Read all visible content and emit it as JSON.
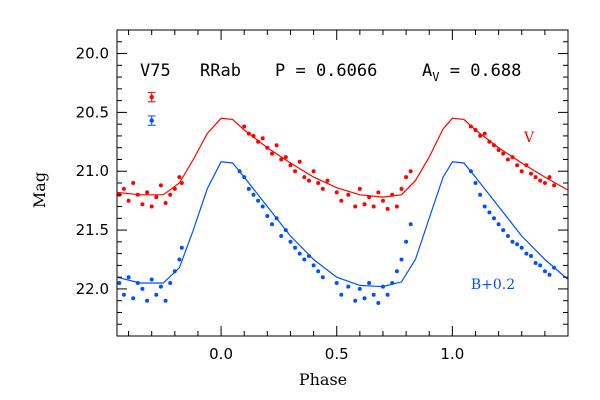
{
  "chart_data": {
    "type": "scatter",
    "xlabel": "Phase",
    "ylabel": "Mag",
    "xlim": [
      -0.45,
      1.5
    ],
    "ylim": [
      22.4,
      19.8
    ],
    "y_inverted": true,
    "x_ticks": [
      "0.0",
      "0.5",
      "1.0"
    ],
    "x_tick_values": [
      0.0,
      0.5,
      1.0
    ],
    "y_ticks": [
      "20.0",
      "20.5",
      "21.0",
      "21.5",
      "22.0"
    ],
    "y_tick_values": [
      20.0,
      20.5,
      21.0,
      21.5,
      22.0
    ],
    "annotation": {
      "star": "V75",
      "type": "RRab",
      "period": "P = 0.6066",
      "amp_symbol": "A",
      "amp_sub": "V",
      "amp_value": " = 0.688"
    },
    "series": [
      {
        "name": "V",
        "color": "#ff0000",
        "fit": [
          [
            -0.45,
            21.18
          ],
          [
            -0.35,
            21.2
          ],
          [
            -0.25,
            21.2
          ],
          [
            -0.18,
            21.1
          ],
          [
            -0.12,
            20.9
          ],
          [
            -0.06,
            20.68
          ],
          [
            0.0,
            20.55
          ],
          [
            0.05,
            20.56
          ],
          [
            0.1,
            20.65
          ],
          [
            0.2,
            20.8
          ],
          [
            0.3,
            20.93
          ],
          [
            0.4,
            21.05
          ],
          [
            0.5,
            21.14
          ],
          [
            0.6,
            21.2
          ],
          [
            0.7,
            21.22
          ],
          [
            0.78,
            21.2
          ],
          [
            0.84,
            21.08
          ],
          [
            0.9,
            20.88
          ],
          [
            0.96,
            20.64
          ],
          [
            1.0,
            20.55
          ],
          [
            1.05,
            20.56
          ],
          [
            1.1,
            20.65
          ],
          [
            1.2,
            20.8
          ],
          [
            1.3,
            20.93
          ],
          [
            1.4,
            21.05
          ],
          [
            1.5,
            21.16
          ]
        ],
        "points": [
          [
            -0.44,
            21.2
          ],
          [
            -0.42,
            21.15
          ],
          [
            -0.4,
            21.25
          ],
          [
            -0.38,
            21.1
          ],
          [
            -0.36,
            21.2
          ],
          [
            -0.34,
            21.28
          ],
          [
            -0.32,
            21.18
          ],
          [
            -0.3,
            21.3
          ],
          [
            -0.28,
            21.22
          ],
          [
            -0.26,
            21.12
          ],
          [
            -0.24,
            21.27
          ],
          [
            -0.22,
            21.2
          ],
          [
            -0.2,
            21.15
          ],
          [
            -0.18,
            21.05
          ],
          [
            -0.17,
            21.1
          ],
          [
            0.1,
            20.62
          ],
          [
            0.12,
            20.68
          ],
          [
            0.14,
            20.7
          ],
          [
            0.16,
            20.75
          ],
          [
            0.18,
            20.72
          ],
          [
            0.2,
            20.8
          ],
          [
            0.22,
            20.85
          ],
          [
            0.24,
            20.78
          ],
          [
            0.26,
            20.9
          ],
          [
            0.28,
            20.88
          ],
          [
            0.3,
            20.95
          ],
          [
            0.32,
            21.0
          ],
          [
            0.34,
            20.92
          ],
          [
            0.36,
            21.05
          ],
          [
            0.38,
            21.08
          ],
          [
            0.4,
            21.0
          ],
          [
            0.42,
            21.1
          ],
          [
            0.44,
            21.15
          ],
          [
            0.46,
            21.08
          ],
          [
            0.5,
            21.18
          ],
          [
            0.52,
            21.25
          ],
          [
            0.55,
            21.2
          ],
          [
            0.58,
            21.3
          ],
          [
            0.6,
            21.15
          ],
          [
            0.62,
            21.28
          ],
          [
            0.64,
            21.22
          ],
          [
            0.66,
            21.3
          ],
          [
            0.68,
            21.18
          ],
          [
            0.7,
            21.25
          ],
          [
            0.72,
            21.32
          ],
          [
            0.74,
            21.2
          ],
          [
            0.76,
            21.3
          ],
          [
            0.78,
            21.15
          ],
          [
            0.8,
            21.05
          ],
          [
            0.82,
            21.0
          ],
          [
            1.08,
            20.62
          ],
          [
            1.1,
            20.65
          ],
          [
            1.12,
            20.7
          ],
          [
            1.14,
            20.68
          ],
          [
            1.16,
            20.75
          ],
          [
            1.18,
            20.78
          ],
          [
            1.2,
            20.82
          ],
          [
            1.22,
            20.85
          ],
          [
            1.24,
            20.9
          ],
          [
            1.26,
            20.88
          ],
          [
            1.28,
            20.95
          ],
          [
            1.3,
            21.0
          ],
          [
            1.32,
            20.95
          ],
          [
            1.34,
            21.02
          ],
          [
            1.36,
            21.05
          ],
          [
            1.38,
            21.08
          ],
          [
            1.4,
            21.1
          ],
          [
            1.42,
            21.05
          ],
          [
            1.44,
            21.12
          ]
        ]
      },
      {
        "name": "B+0.2",
        "color": "#0050ff",
        "fit": [
          [
            -0.45,
            21.9
          ],
          [
            -0.35,
            21.95
          ],
          [
            -0.25,
            21.95
          ],
          [
            -0.18,
            21.82
          ],
          [
            -0.12,
            21.5
          ],
          [
            -0.06,
            21.15
          ],
          [
            0.0,
            20.92
          ],
          [
            0.05,
            20.93
          ],
          [
            0.1,
            21.05
          ],
          [
            0.2,
            21.3
          ],
          [
            0.3,
            21.55
          ],
          [
            0.4,
            21.75
          ],
          [
            0.5,
            21.9
          ],
          [
            0.6,
            21.97
          ],
          [
            0.7,
            21.98
          ],
          [
            0.78,
            21.94
          ],
          [
            0.84,
            21.75
          ],
          [
            0.9,
            21.4
          ],
          [
            0.96,
            21.05
          ],
          [
            1.0,
            20.92
          ],
          [
            1.05,
            20.93
          ],
          [
            1.1,
            21.05
          ],
          [
            1.2,
            21.3
          ],
          [
            1.3,
            21.55
          ],
          [
            1.4,
            21.75
          ],
          [
            1.5,
            21.92
          ]
        ],
        "points": [
          [
            -0.44,
            21.95
          ],
          [
            -0.42,
            22.05
          ],
          [
            -0.4,
            21.9
          ],
          [
            -0.38,
            22.08
          ],
          [
            -0.36,
            21.95
          ],
          [
            -0.34,
            22.0
          ],
          [
            -0.32,
            22.1
          ],
          [
            -0.3,
            21.92
          ],
          [
            -0.28,
            22.05
          ],
          [
            -0.26,
            21.98
          ],
          [
            -0.24,
            22.1
          ],
          [
            -0.22,
            21.95
          ],
          [
            -0.2,
            21.85
          ],
          [
            -0.18,
            21.75
          ],
          [
            -0.17,
            21.65
          ],
          [
            0.08,
            21.0
          ],
          [
            0.1,
            21.05
          ],
          [
            0.12,
            21.15
          ],
          [
            0.14,
            21.2
          ],
          [
            0.16,
            21.25
          ],
          [
            0.18,
            21.3
          ],
          [
            0.2,
            21.38
          ],
          [
            0.22,
            21.45
          ],
          [
            0.24,
            21.4
          ],
          [
            0.26,
            21.55
          ],
          [
            0.28,
            21.5
          ],
          [
            0.3,
            21.6
          ],
          [
            0.32,
            21.65
          ],
          [
            0.34,
            21.7
          ],
          [
            0.36,
            21.75
          ],
          [
            0.38,
            21.72
          ],
          [
            0.4,
            21.8
          ],
          [
            0.42,
            21.85
          ],
          [
            0.44,
            21.9
          ],
          [
            0.5,
            21.95
          ],
          [
            0.52,
            22.05
          ],
          [
            0.55,
            21.98
          ],
          [
            0.58,
            22.1
          ],
          [
            0.6,
            22.0
          ],
          [
            0.62,
            22.08
          ],
          [
            0.64,
            21.95
          ],
          [
            0.66,
            22.05
          ],
          [
            0.68,
            22.12
          ],
          [
            0.7,
            21.98
          ],
          [
            0.72,
            22.05
          ],
          [
            0.74,
            21.95
          ],
          [
            0.76,
            21.85
          ],
          [
            0.78,
            21.75
          ],
          [
            0.8,
            21.6
          ],
          [
            0.82,
            21.45
          ],
          [
            1.08,
            21.0
          ],
          [
            1.1,
            21.1
          ],
          [
            1.12,
            21.2
          ],
          [
            1.14,
            21.3
          ],
          [
            1.16,
            21.35
          ],
          [
            1.18,
            21.4
          ],
          [
            1.2,
            21.45
          ],
          [
            1.22,
            21.5
          ],
          [
            1.24,
            21.55
          ],
          [
            1.26,
            21.6
          ],
          [
            1.28,
            21.62
          ],
          [
            1.3,
            21.65
          ],
          [
            1.32,
            21.7
          ],
          [
            1.34,
            21.72
          ],
          [
            1.36,
            21.78
          ],
          [
            1.38,
            21.8
          ],
          [
            1.4,
            21.85
          ],
          [
            1.42,
            21.88
          ],
          [
            1.44,
            21.82
          ]
        ]
      }
    ],
    "series_labels": [
      {
        "text": "V",
        "x": 1.31,
        "y": 20.75,
        "color": "#ff0000"
      },
      {
        "text": "B+0.2",
        "x": 1.08,
        "y": 22.0,
        "color": "#0050ff"
      }
    ],
    "error_bars": [
      {
        "x": -0.3,
        "y": 20.37,
        "err": 0.04,
        "color": "#ff0000"
      },
      {
        "x": -0.3,
        "y": 20.57,
        "err": 0.04,
        "color": "#0050ff"
      }
    ]
  }
}
